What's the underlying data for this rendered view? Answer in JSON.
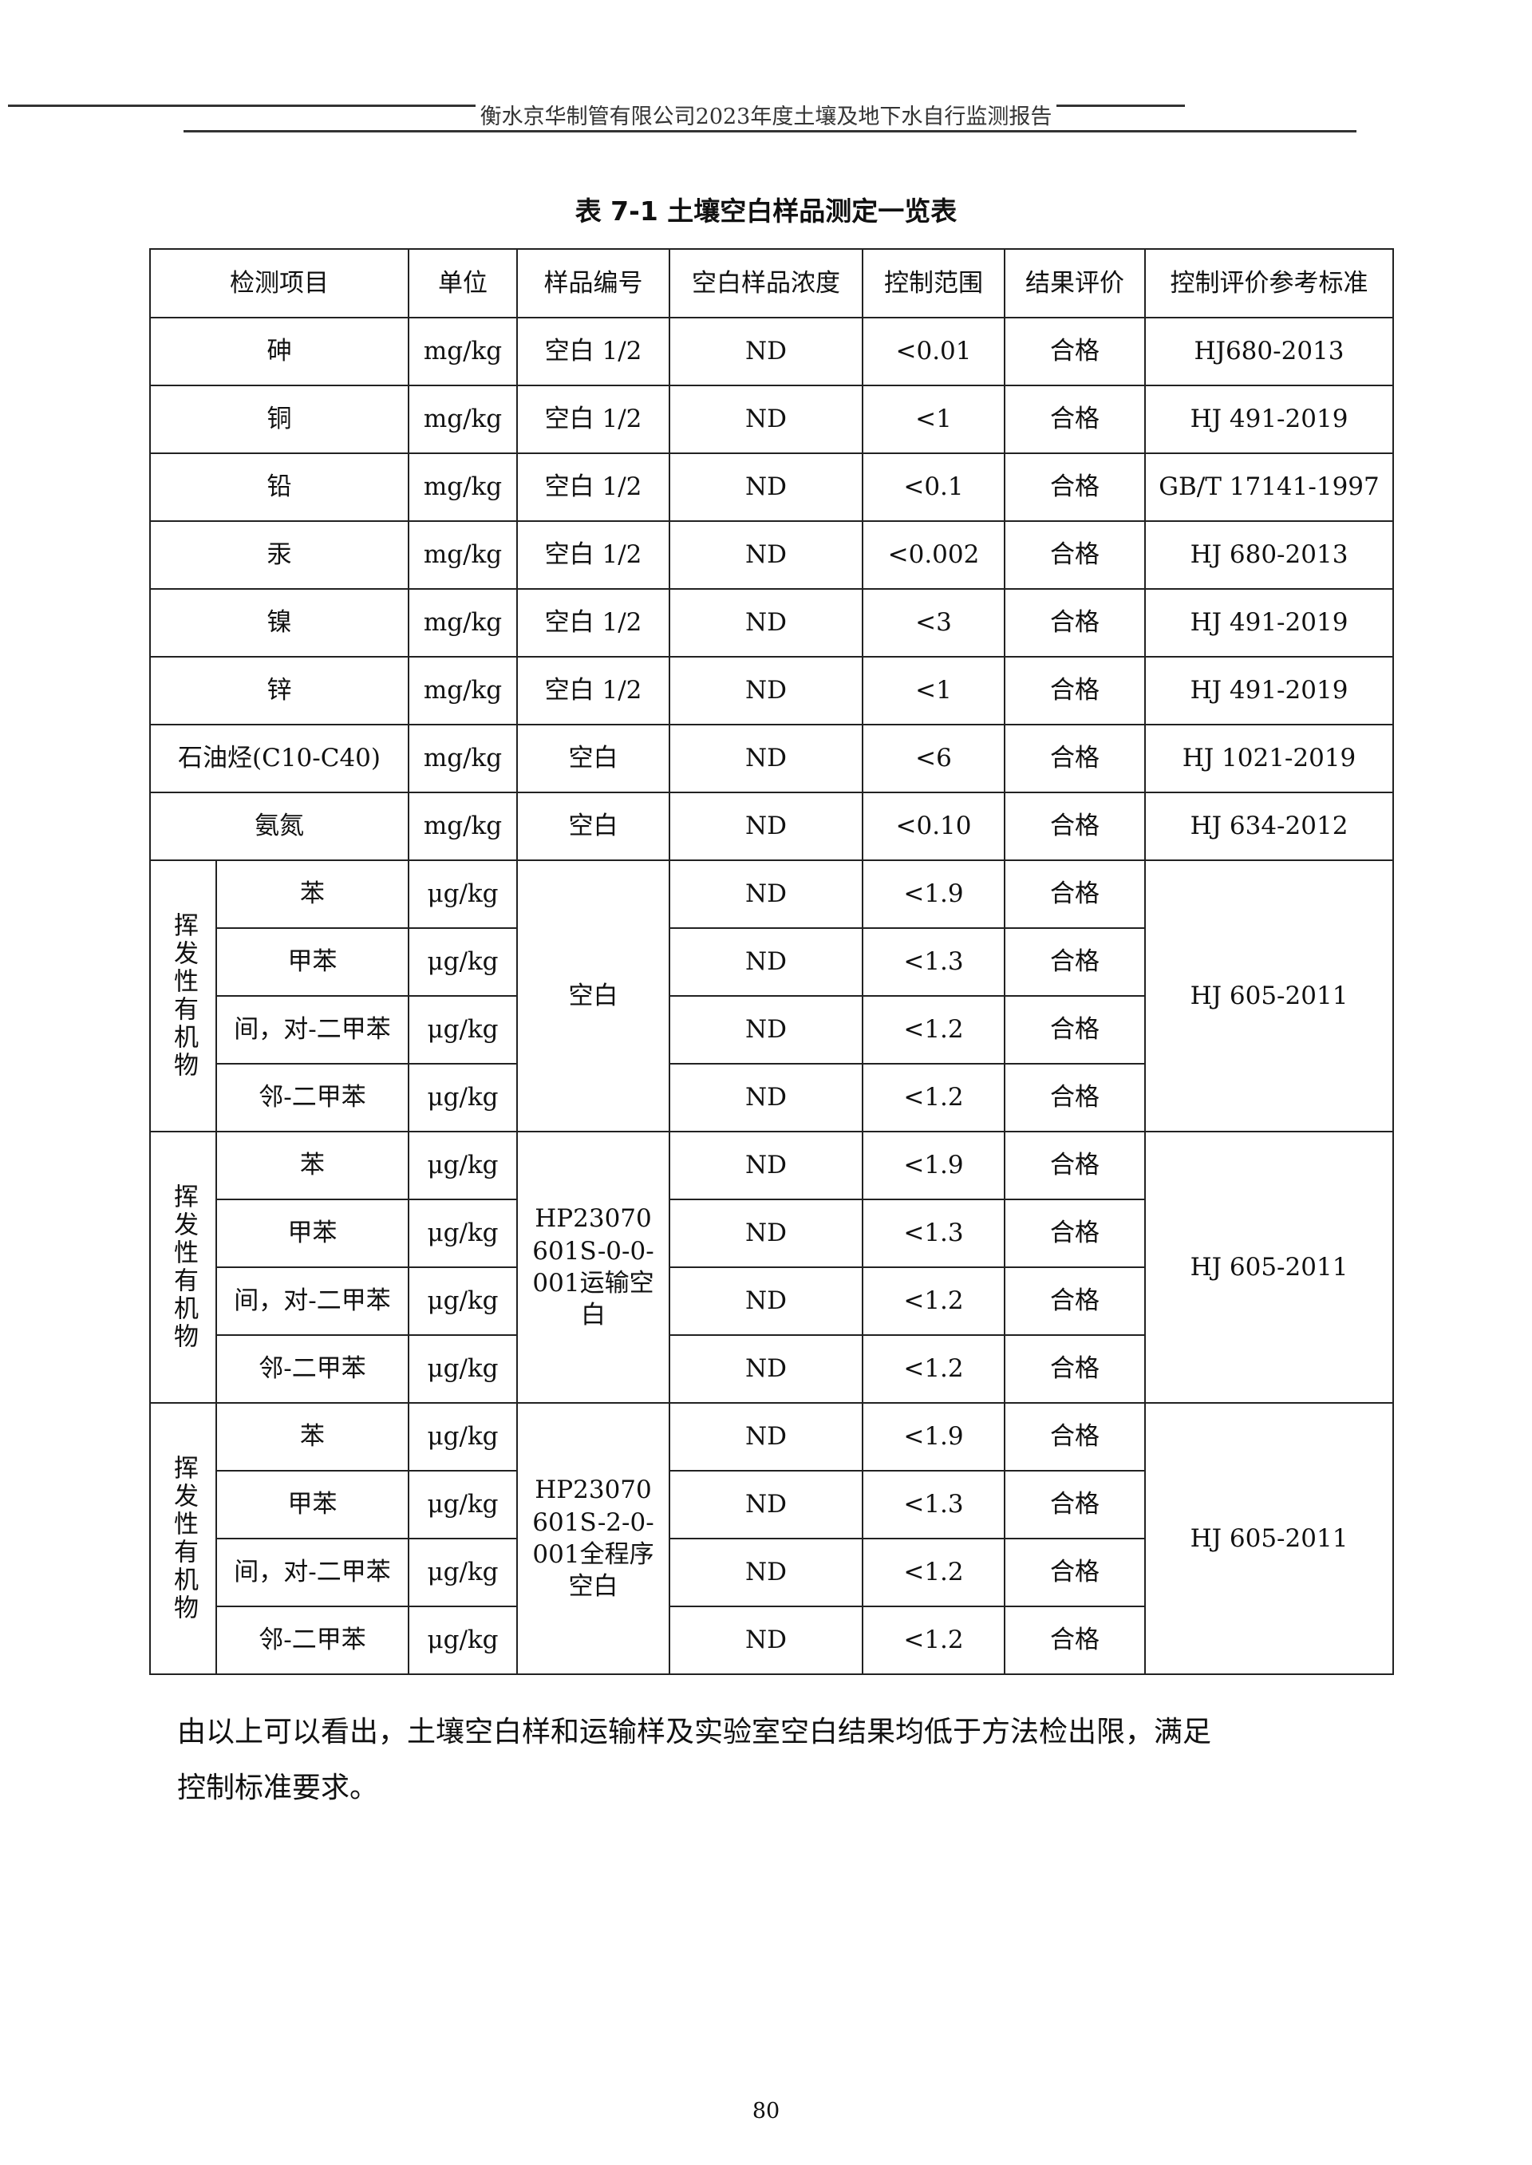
{
  "header": {
    "text": "衡水京华制管有限公司2023年度土壤及地下水自行监测报告"
  },
  "table_title": "表 7-1   土壤空白样品测定一览表",
  "table": {
    "columns": [
      "检测项目",
      "单位",
      "样品编号",
      "空白样品浓度",
      "控制范围",
      "结果评价",
      "控制评价参考标准"
    ],
    "rows": [
      {
        "item": "砷",
        "unit": "mg/kg",
        "sample": "空白 1/2",
        "conc": "ND",
        "range": "<0.01",
        "result": "合格",
        "standard": "HJ680-2013"
      },
      {
        "item": "铜",
        "unit": "mg/kg",
        "sample": "空白 1/2",
        "conc": "ND",
        "range": "<1",
        "result": "合格",
        "standard": "HJ 491-2019"
      },
      {
        "item": "铅",
        "unit": "mg/kg",
        "sample": "空白 1/2",
        "conc": "ND",
        "range": "<0.1",
        "result": "合格",
        "standard": "GB/T 17141-1997"
      },
      {
        "item": "汞",
        "unit": "mg/kg",
        "sample": "空白 1/2",
        "conc": "ND",
        "range": "<0.002",
        "result": "合格",
        "standard": "HJ 680-2013"
      },
      {
        "item": "镍",
        "unit": "mg/kg",
        "sample": "空白 1/2",
        "conc": "ND",
        "range": "<3",
        "result": "合格",
        "standard": "HJ 491-2019"
      },
      {
        "item": "锌",
        "unit": "mg/kg",
        "sample": "空白 1/2",
        "conc": "ND",
        "range": "<1",
        "result": "合格",
        "standard": "HJ 491-2019"
      },
      {
        "item": "石油烃(C10-C40)",
        "unit": "mg/kg",
        "sample": "空白",
        "conc": "ND",
        "range": "<6",
        "result": "合格",
        "standard": "HJ 1021-2019"
      },
      {
        "item": "氨氮",
        "unit": "mg/kg",
        "sample": "空白",
        "conc": "ND",
        "range": "<0.10",
        "result": "合格",
        "standard": "HJ 634-2012"
      }
    ],
    "groups": [
      {
        "category": "挥发性有机物",
        "sample": "空白",
        "standard": "HJ 605-2011",
        "rows": [
          {
            "item": "苯",
            "unit": "μg/kg",
            "conc": "ND",
            "range": "<1.9",
            "result": "合格"
          },
          {
            "item": "甲苯",
            "unit": "μg/kg",
            "conc": "ND",
            "range": "<1.3",
            "result": "合格"
          },
          {
            "item": "间，对-二甲苯",
            "unit": "μg/kg",
            "conc": "ND",
            "range": "<1.2",
            "result": "合格"
          },
          {
            "item": "邻-二甲苯",
            "unit": "μg/kg",
            "conc": "ND",
            "range": "<1.2",
            "result": "合格"
          }
        ]
      },
      {
        "category": "挥发性有机物",
        "sample": "HP23070601S-0-0-001运输空白",
        "standard": "HJ 605-2011",
        "rows": [
          {
            "item": "苯",
            "unit": "μg/kg",
            "conc": "ND",
            "range": "<1.9",
            "result": "合格"
          },
          {
            "item": "甲苯",
            "unit": "μg/kg",
            "conc": "ND",
            "range": "<1.3",
            "result": "合格"
          },
          {
            "item": "间，对-二甲苯",
            "unit": "μg/kg",
            "conc": "ND",
            "range": "<1.2",
            "result": "合格"
          },
          {
            "item": "邻-二甲苯",
            "unit": "μg/kg",
            "conc": "ND",
            "range": "<1.2",
            "result": "合格"
          }
        ]
      },
      {
        "category": "挥发性有机物",
        "sample": "HP23070601S-2-0-001全程序空白",
        "standard": "HJ 605-2011",
        "rows": [
          {
            "item": "苯",
            "unit": "μg/kg",
            "conc": "ND",
            "range": "<1.9",
            "result": "合格"
          },
          {
            "item": "甲苯",
            "unit": "μg/kg",
            "conc": "ND",
            "range": "<1.3",
            "result": "合格"
          },
          {
            "item": "间，对-二甲苯",
            "unit": "μg/kg",
            "conc": "ND",
            "range": "<1.2",
            "result": "合格"
          },
          {
            "item": "邻-二甲苯",
            "unit": "μg/kg",
            "conc": "ND",
            "range": "<1.2",
            "result": "合格"
          }
        ]
      }
    ]
  },
  "conclusion": {
    "line1": "由以上可以看出，土壤空白样和运输样及实验室空白结果均低于方法检出限，满足",
    "line2": "控制标准要求。"
  },
  "page_number": "80"
}
